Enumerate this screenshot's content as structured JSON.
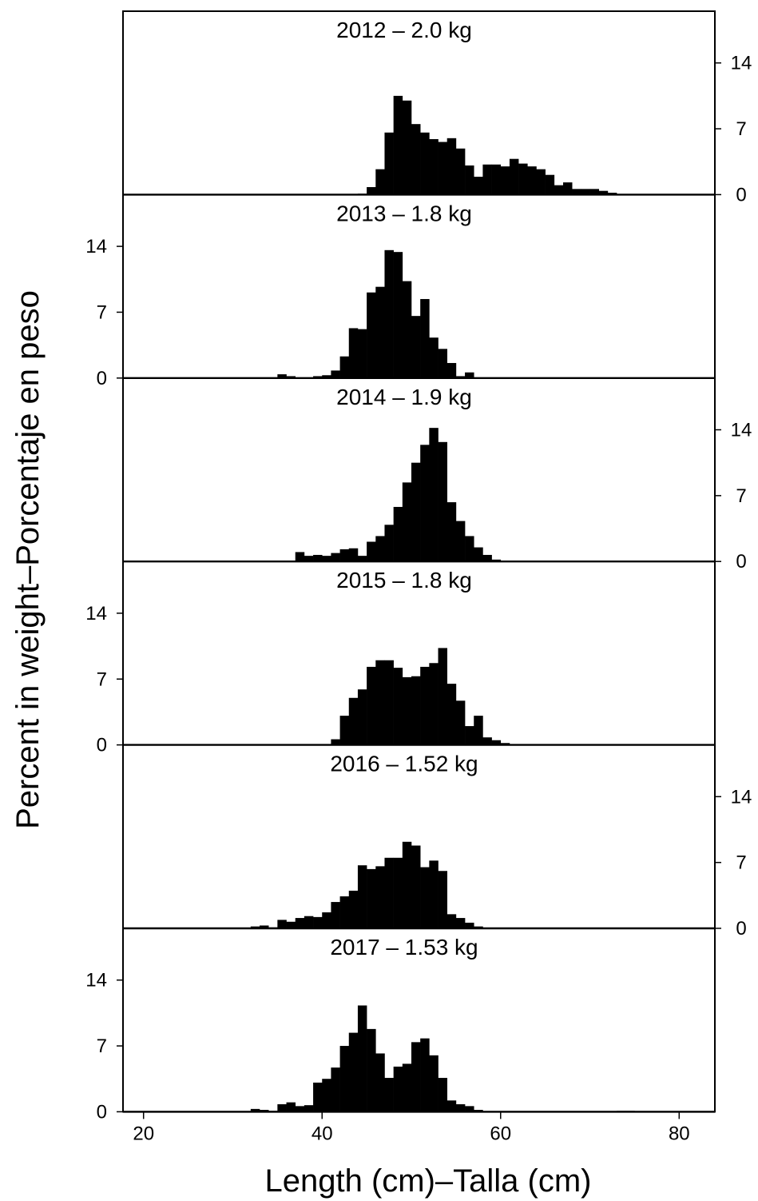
{
  "chart_data": {
    "type": "bar",
    "xlabel": "Length (cm)–Talla (cm)",
    "ylabel": "Percent in weight–Porcentaje en peso",
    "xlim": [
      17.7,
      84
    ],
    "ylim": [
      0,
      19.5
    ],
    "x_ticks": [
      "20",
      "40",
      "60",
      "80"
    ],
    "y_ticks": [
      "0",
      "7",
      "14"
    ],
    "bin_start": 20,
    "bin_width": 1,
    "panels": [
      {
        "title": "2012  –  2.0  kg",
        "y_axis_side": "right",
        "values": [
          0,
          0,
          0,
          0,
          0,
          0,
          0,
          0,
          0,
          0,
          0,
          0,
          0,
          0,
          0,
          0,
          0,
          0,
          0,
          0,
          0,
          0,
          0,
          0,
          0.1,
          0.8,
          2.7,
          6.6,
          10.5,
          10.0,
          7.5,
          6.6,
          5.9,
          5.6,
          6.0,
          4.9,
          3.1,
          1.9,
          3.2,
          3.2,
          3.0,
          3.8,
          3.3,
          3.0,
          2.7,
          2.1,
          1.0,
          1.3,
          0.6,
          0.6,
          0.6,
          0.4,
          0.2,
          0,
          0,
          0,
          0,
          0,
          0,
          0,
          0,
          0,
          0,
          0,
          0
        ]
      },
      {
        "title": "2013  –  1.8 kg",
        "y_axis_side": "left",
        "values": [
          0,
          0,
          0,
          0,
          0,
          0,
          0,
          0,
          0,
          0,
          0,
          0,
          0,
          0,
          0,
          0.4,
          0.2,
          0,
          0,
          0.2,
          0.3,
          0.8,
          2.3,
          5.3,
          5.2,
          9.1,
          9.7,
          13.6,
          13.4,
          10.3,
          6.6,
          8.4,
          4.3,
          3.1,
          1.6,
          0.2,
          0.6,
          0,
          0,
          0,
          0,
          0,
          0,
          0,
          0,
          0,
          0,
          0,
          0,
          0,
          0,
          0,
          0,
          0,
          0,
          0,
          0,
          0,
          0,
          0,
          0,
          0,
          0,
          0,
          0
        ]
      },
      {
        "title": "2014  –  1.9  kg",
        "y_axis_side": "right",
        "values": [
          0,
          0,
          0,
          0,
          0,
          0,
          0,
          0,
          0,
          0,
          0,
          0,
          0,
          0,
          0,
          0,
          0,
          1.0,
          0.6,
          0.7,
          0.6,
          0.9,
          1.3,
          1.4,
          0.6,
          2.1,
          2.7,
          3.9,
          5.8,
          8.4,
          10.5,
          12.4,
          14.2,
          12.7,
          6.3,
          4.3,
          2.7,
          1.5,
          0.7,
          0.2,
          0.1,
          0.1,
          0,
          0,
          0,
          0,
          0,
          0,
          0,
          0,
          0,
          0,
          0,
          0,
          0,
          0,
          0,
          0,
          0,
          0,
          0,
          0,
          0,
          0,
          0
        ]
      },
      {
        "title": "2015  –  1.8  kg",
        "y_axis_side": "left",
        "values": [
          0,
          0,
          0,
          0,
          0,
          0,
          0,
          0,
          0,
          0,
          0,
          0,
          0,
          0,
          0,
          0,
          0,
          0,
          0,
          0,
          0,
          0.6,
          3.1,
          5.0,
          5.9,
          8.3,
          9.0,
          9.0,
          8.2,
          7.2,
          7.3,
          8.3,
          8.7,
          10.3,
          6.5,
          4.7,
          2.0,
          3.1,
          0.8,
          0.5,
          0.2,
          0,
          0,
          0,
          0,
          0,
          0,
          0,
          0,
          0,
          0,
          0,
          0,
          0,
          0,
          0,
          0,
          0,
          0,
          0,
          0,
          0,
          0,
          0,
          0
        ]
      },
      {
        "title": "2016  –  1.52  kg",
        "y_axis_side": "right",
        "values": [
          0,
          0,
          0,
          0,
          0,
          0,
          0,
          0,
          0,
          0,
          0,
          0,
          0.2,
          0.3,
          0.1,
          0.9,
          0.7,
          1.1,
          1.3,
          1.2,
          1.7,
          2.8,
          3.4,
          4.0,
          6.7,
          6.3,
          6.6,
          7.5,
          7.5,
          9.2,
          8.8,
          6.5,
          7.2,
          6.1,
          1.5,
          1.1,
          0.6,
          0.2,
          0,
          0,
          0,
          0,
          0,
          0,
          0,
          0,
          0,
          0,
          0,
          0,
          0,
          0,
          0,
          0,
          0,
          0,
          0,
          0,
          0,
          0,
          0,
          0,
          0,
          0,
          0
        ]
      },
      {
        "title": "2017  –  1.53  kg",
        "y_axis_side": "left",
        "values": [
          0,
          0,
          0,
          0,
          0,
          0,
          0,
          0,
          0,
          0,
          0,
          0,
          0.3,
          0.2,
          0.1,
          0.8,
          1.0,
          0.6,
          0.7,
          3.1,
          3.5,
          4.7,
          7.0,
          8.4,
          11.3,
          8.8,
          6.2,
          3.6,
          4.8,
          5.1,
          7.4,
          7.8,
          6.0,
          3.6,
          1.2,
          0.8,
          0.6,
          0.2,
          0,
          0,
          0,
          0,
          0,
          0,
          0,
          0,
          0,
          0,
          0,
          0,
          0,
          0,
          0,
          0.1,
          0.1,
          0,
          0,
          0,
          0,
          0,
          0,
          0,
          0,
          0,
          0
        ]
      }
    ]
  }
}
